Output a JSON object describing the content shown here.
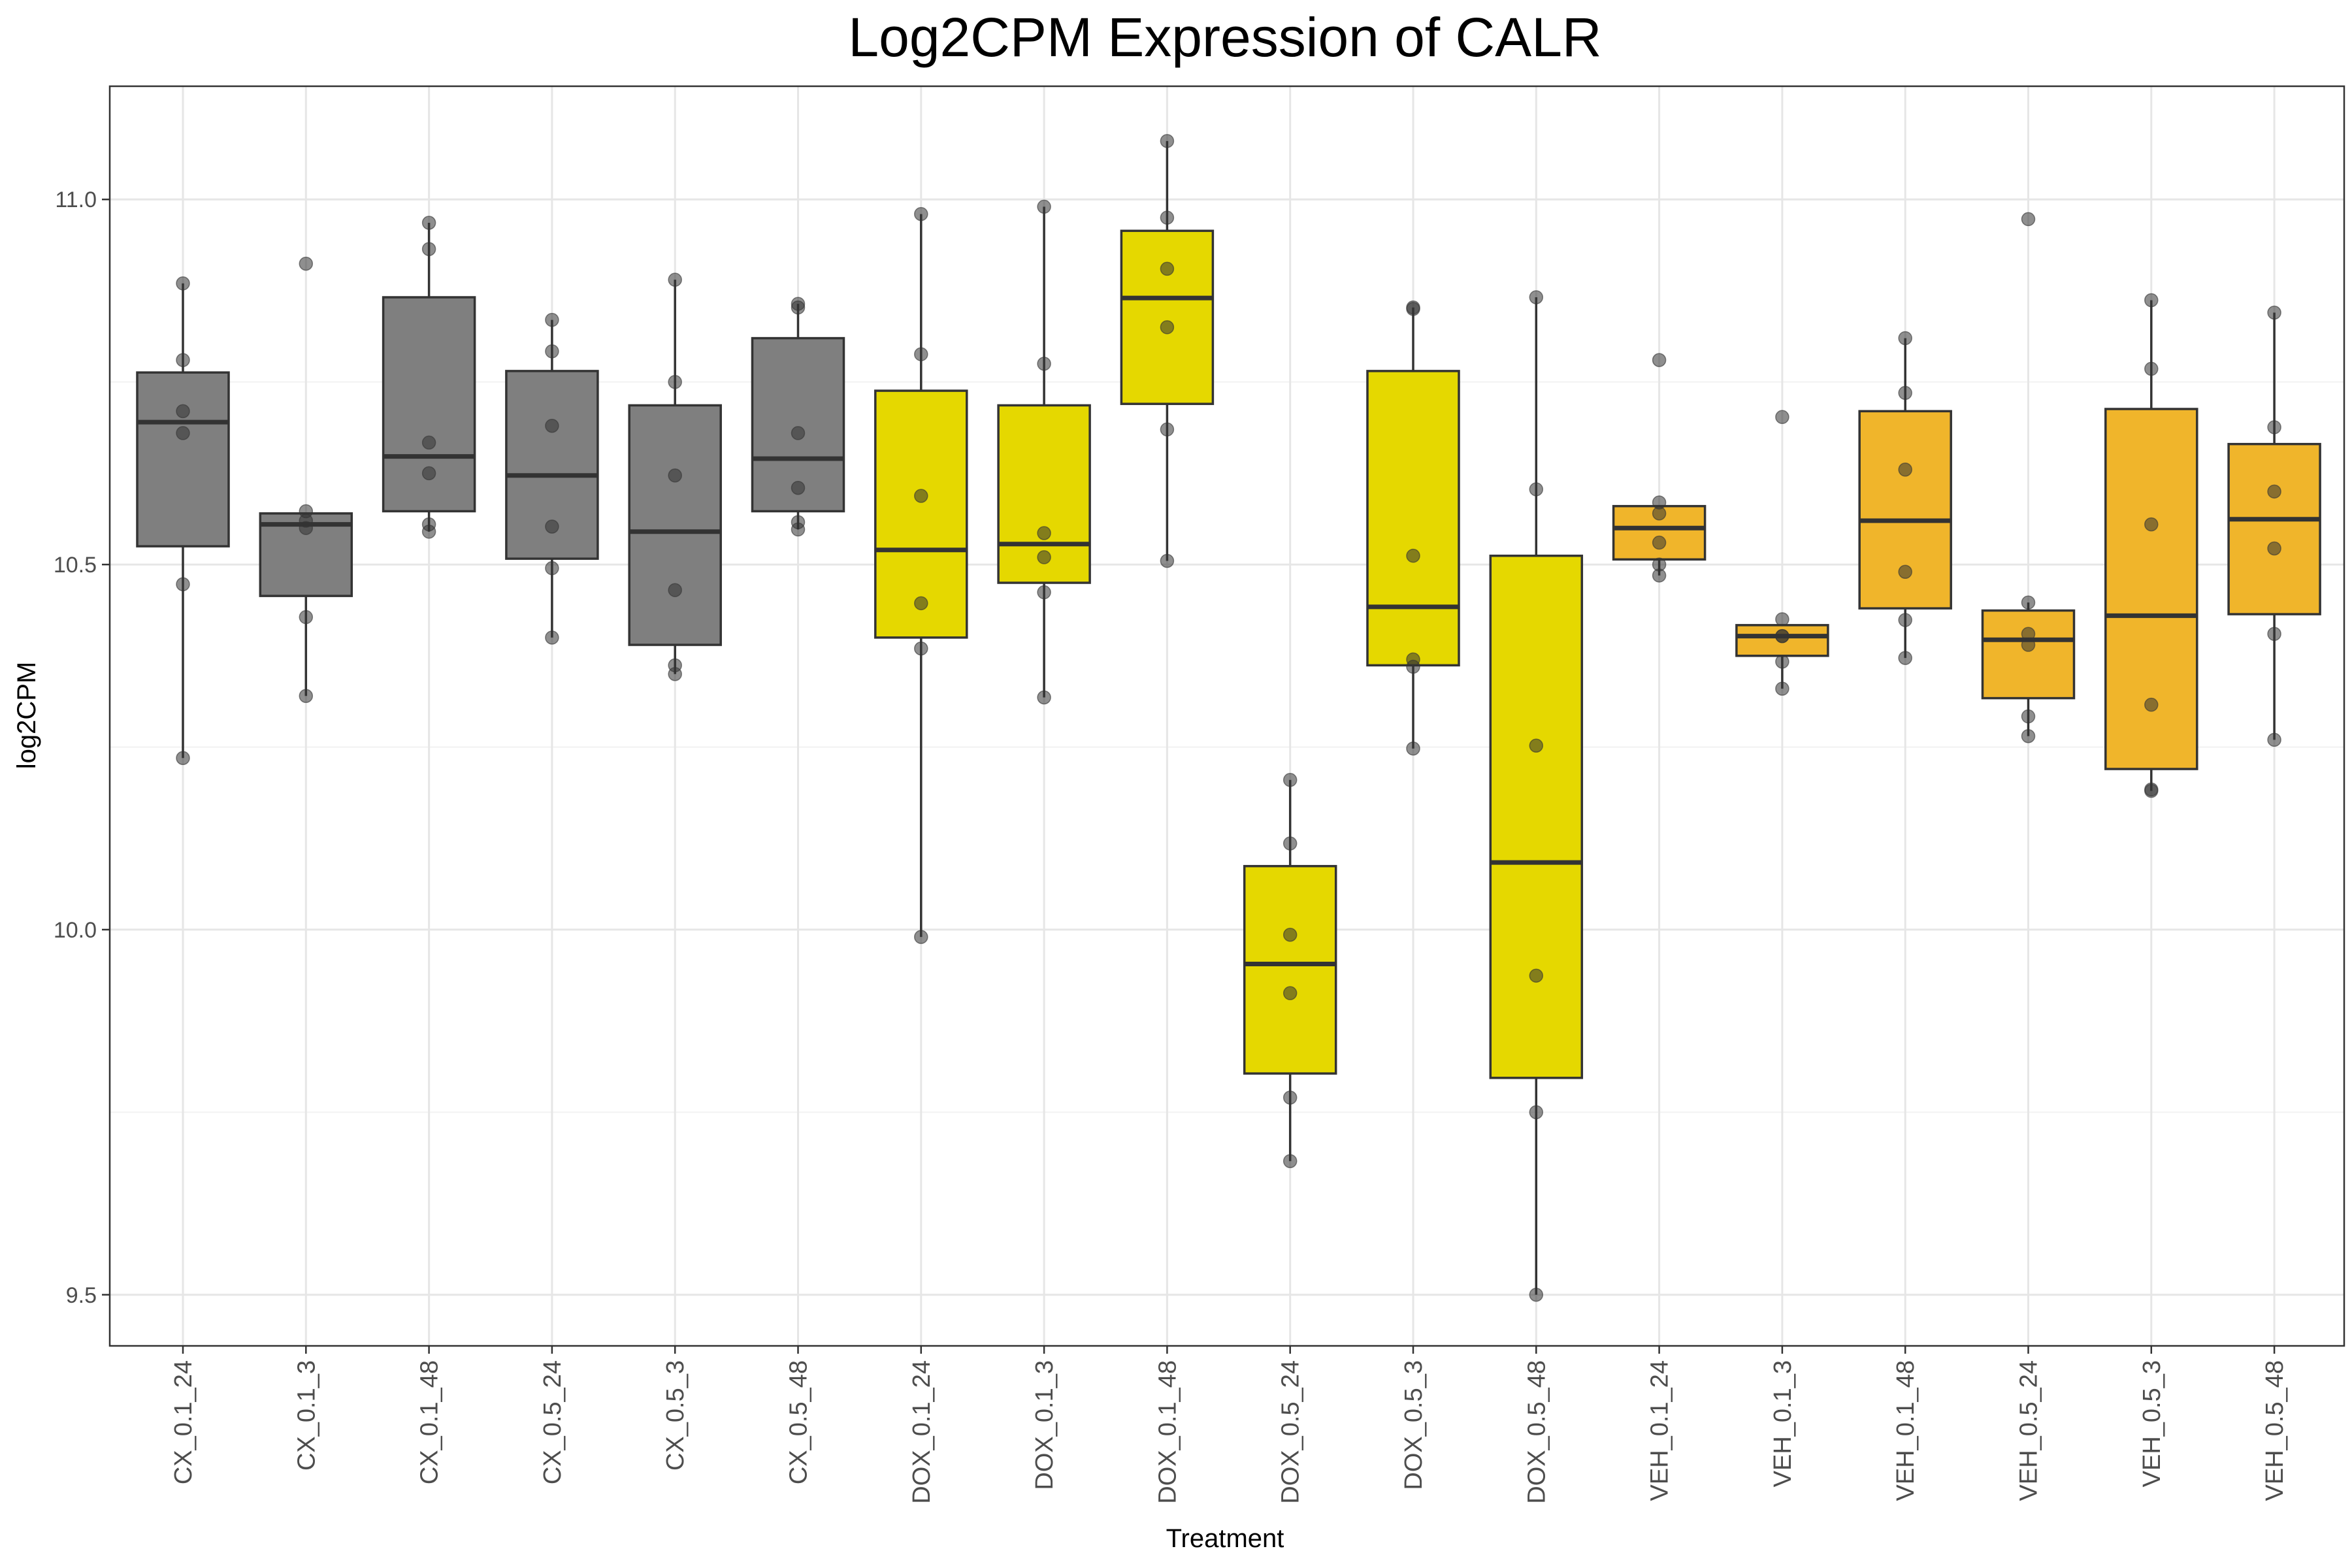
{
  "chart_data": {
    "type": "box",
    "title": "Log2CPM Expression of CALR",
    "xlabel": "Treatment",
    "ylabel": "log2CPM",
    "ylim": [
      9.43,
      11.155
    ],
    "yticks": [
      9.5,
      10.0,
      10.5,
      11.0
    ],
    "ytick_labels": [
      "9.5",
      "10.0",
      "10.5",
      "11.0"
    ],
    "grid": true,
    "colors": {
      "CX": "#7f7f7f",
      "DOX": "#e5d800",
      "VEH": "#f0b52b",
      "point": "#333333",
      "panel_border": "#333333",
      "grid": "#ebebeb"
    },
    "categories": [
      "CX_0.1_24",
      "CX_0.1_3",
      "CX_0.1_48",
      "CX_0.5_24",
      "CX_0.5_3",
      "CX_0.5_48",
      "DOX_0.1_24",
      "DOX_0.1_3",
      "DOX_0.1_48",
      "DOX_0.5_24",
      "DOX_0.5_3",
      "DOX_0.5_48",
      "VEH_0.1_24",
      "VEH_0.1_3",
      "VEH_0.1_48",
      "VEH_0.5_24",
      "VEH_0.5_3",
      "VEH_0.5_48"
    ],
    "boxes": [
      {
        "group": "CX",
        "q1": 10.525,
        "median": 10.695,
        "q3": 10.763,
        "whisker_low": 10.235,
        "whisker_high": 10.885,
        "points": [
          10.885,
          10.78,
          10.71,
          10.68,
          10.473,
          10.235
        ]
      },
      {
        "group": "CX",
        "q1": 10.457,
        "median": 10.555,
        "q3": 10.57,
        "whisker_low": 10.32,
        "whisker_high": 10.57,
        "points": [
          10.912,
          10.573,
          10.56,
          10.55,
          10.428,
          10.32
        ]
      },
      {
        "group": "CX",
        "q1": 10.573,
        "median": 10.648,
        "q3": 10.866,
        "whisker_low": 10.545,
        "whisker_high": 10.968,
        "points": [
          10.968,
          10.932,
          10.667,
          10.625,
          10.555,
          10.545
        ]
      },
      {
        "group": "CX",
        "q1": 10.508,
        "median": 10.622,
        "q3": 10.765,
        "whisker_low": 10.4,
        "whisker_high": 10.835,
        "points": [
          10.835,
          10.792,
          10.69,
          10.552,
          10.495,
          10.4
        ]
      },
      {
        "group": "CX",
        "q1": 10.39,
        "median": 10.545,
        "q3": 10.718,
        "whisker_low": 10.35,
        "whisker_high": 10.89,
        "points": [
          10.89,
          10.75,
          10.622,
          10.465,
          10.362,
          10.35
        ]
      },
      {
        "group": "CX",
        "q1": 10.573,
        "median": 10.645,
        "q3": 10.81,
        "whisker_low": 10.548,
        "whisker_high": 10.857,
        "points": [
          10.857,
          10.852,
          10.68,
          10.605,
          10.558,
          10.548
        ]
      },
      {
        "group": "DOX",
        "q1": 10.4,
        "median": 10.52,
        "q3": 10.738,
        "whisker_low": 9.99,
        "whisker_high": 10.98,
        "points": [
          10.98,
          10.788,
          10.594,
          10.447,
          10.385,
          9.99
        ]
      },
      {
        "group": "DOX",
        "q1": 10.475,
        "median": 10.528,
        "q3": 10.718,
        "whisker_low": 10.318,
        "whisker_high": 10.99,
        "points": [
          10.99,
          10.775,
          10.543,
          10.51,
          10.462,
          10.318
        ]
      },
      {
        "group": "DOX",
        "q1": 10.72,
        "median": 10.865,
        "q3": 10.957,
        "whisker_low": 10.505,
        "whisker_high": 11.08,
        "points": [
          11.08,
          10.975,
          10.905,
          10.825,
          10.685,
          10.505
        ]
      },
      {
        "group": "DOX",
        "q1": 9.803,
        "median": 9.953,
        "q3": 10.087,
        "whisker_low": 9.683,
        "whisker_high": 10.205,
        "points": [
          10.205,
          10.118,
          9.993,
          9.913,
          9.77,
          9.683
        ]
      },
      {
        "group": "DOX",
        "q1": 10.362,
        "median": 10.442,
        "q3": 10.765,
        "whisker_low": 10.248,
        "whisker_high": 10.852,
        "points": [
          10.852,
          10.85,
          10.512,
          10.37,
          10.36,
          10.248
        ]
      },
      {
        "group": "DOX",
        "q1": 9.797,
        "median": 10.092,
        "q3": 10.512,
        "whisker_low": 9.5,
        "whisker_high": 10.866,
        "points": [
          10.866,
          10.603,
          10.252,
          9.937,
          9.75,
          9.5
        ]
      },
      {
        "group": "VEH",
        "q1": 10.507,
        "median": 10.55,
        "q3": 10.58,
        "whisker_low": 10.485,
        "whisker_high": 10.58,
        "points": [
          10.78,
          10.585,
          10.57,
          10.53,
          10.5,
          10.485
        ]
      },
      {
        "group": "VEH",
        "q1": 10.375,
        "median": 10.402,
        "q3": 10.417,
        "whisker_low": 10.33,
        "whisker_high": 10.417,
        "points": [
          10.702,
          10.425,
          10.402,
          10.402,
          10.367,
          10.33
        ]
      },
      {
        "group": "VEH",
        "q1": 10.44,
        "median": 10.56,
        "q3": 10.71,
        "whisker_low": 10.372,
        "whisker_high": 10.81,
        "points": [
          10.81,
          10.735,
          10.63,
          10.49,
          10.424,
          10.372
        ]
      },
      {
        "group": "VEH",
        "q1": 10.317,
        "median": 10.397,
        "q3": 10.437,
        "whisker_low": 10.265,
        "whisker_high": 10.448,
        "points": [
          10.973,
          10.448,
          10.405,
          10.39,
          10.292,
          10.265
        ]
      },
      {
        "group": "VEH",
        "q1": 10.22,
        "median": 10.43,
        "q3": 10.713,
        "whisker_low": 10.19,
        "whisker_high": 10.862,
        "points": [
          10.862,
          10.768,
          10.555,
          10.308,
          10.192,
          10.19
        ]
      },
      {
        "group": "VEH",
        "q1": 10.432,
        "median": 10.562,
        "q3": 10.665,
        "whisker_low": 10.26,
        "whisker_high": 10.845,
        "points": [
          10.845,
          10.688,
          10.6,
          10.522,
          10.405,
          10.26
        ]
      }
    ]
  }
}
